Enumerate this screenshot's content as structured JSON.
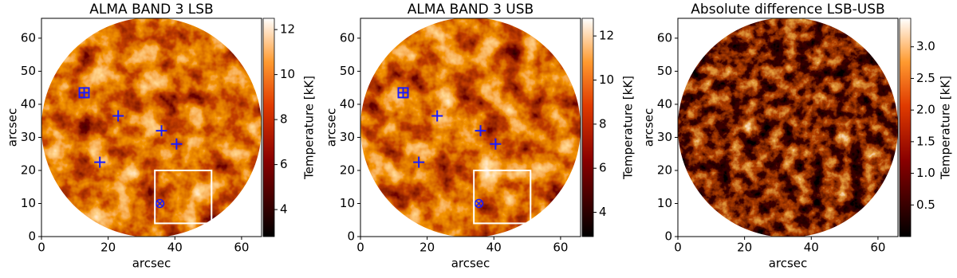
{
  "chart_data": [
    {
      "type": "image",
      "title": "ALMA BAND 3 LSB",
      "xlabel": "arcsec",
      "ylabel": "arcsec",
      "xlim": [
        0,
        66
      ],
      "ylim": [
        0,
        66
      ],
      "xticks": [
        0,
        20,
        40,
        60
      ],
      "yticks": [
        0,
        10,
        20,
        30,
        40,
        50,
        60
      ],
      "colormap": "gist_heat",
      "colorbar": {
        "label": "Temperature [kK]",
        "lim": [
          2.8,
          12.5
        ],
        "ticks": [
          4,
          6,
          8,
          10,
          12
        ]
      },
      "markers": {
        "color": "#1a1aff",
        "plus": {
          "x": [
            12.8,
            23,
            36,
            40.5,
            17.5
          ],
          "y": [
            43.5,
            36.5,
            32,
            28,
            22.5
          ]
        },
        "square": {
          "x": [
            12.8
          ],
          "y": [
            43.5
          ]
        },
        "circled_x": {
          "x": [
            35.5
          ],
          "y": [
            10
          ]
        }
      },
      "box": {
        "color": "#ffffff",
        "x": [
          34,
          51
        ],
        "y": [
          4,
          20
        ]
      }
    },
    {
      "type": "image",
      "title": "ALMA BAND 3 USB",
      "xlabel": "arcsec",
      "ylabel": "arcsec",
      "xlim": [
        0,
        66
      ],
      "ylim": [
        0,
        66
      ],
      "xticks": [
        0,
        20,
        40,
        60
      ],
      "yticks": [
        0,
        10,
        20,
        30,
        40,
        50,
        60
      ],
      "colormap": "gist_heat",
      "colorbar": {
        "label": "Temperature [kK]",
        "lim": [
          2.9,
          12.8
        ],
        "ticks": [
          4,
          6,
          8,
          10,
          12
        ]
      },
      "markers": {
        "color": "#1a1aff",
        "plus": {
          "x": [
            12.8,
            23,
            36,
            40.5,
            17.5
          ],
          "y": [
            43.5,
            36.5,
            32,
            28,
            22.5
          ]
        },
        "square": {
          "x": [
            12.8
          ],
          "y": [
            43.5
          ]
        },
        "circled_x": {
          "x": [
            35.5
          ],
          "y": [
            10
          ]
        }
      },
      "box": {
        "color": "#ffffff",
        "x": [
          34,
          51
        ],
        "y": [
          4,
          20
        ]
      }
    },
    {
      "type": "image",
      "title": "Absolute difference LSB-USB",
      "xlabel": "arcsec",
      "ylabel": "arcsec",
      "xlim": [
        0,
        66
      ],
      "ylim": [
        0,
        66
      ],
      "xticks": [
        0,
        20,
        40,
        60
      ],
      "yticks": [
        0,
        10,
        20,
        30,
        40,
        50,
        60
      ],
      "colormap": "gist_heat",
      "colorbar": {
        "label": "Temperature [kK]",
        "lim": [
          0,
          3.45
        ],
        "ticks": [
          0.5,
          {
            "value": 1,
            "label": "1.0"
          },
          1.5,
          {
            "value": 2,
            "label": "2.0"
          },
          2.5,
          {
            "value": 3,
            "label": "3.0"
          }
        ]
      }
    }
  ]
}
